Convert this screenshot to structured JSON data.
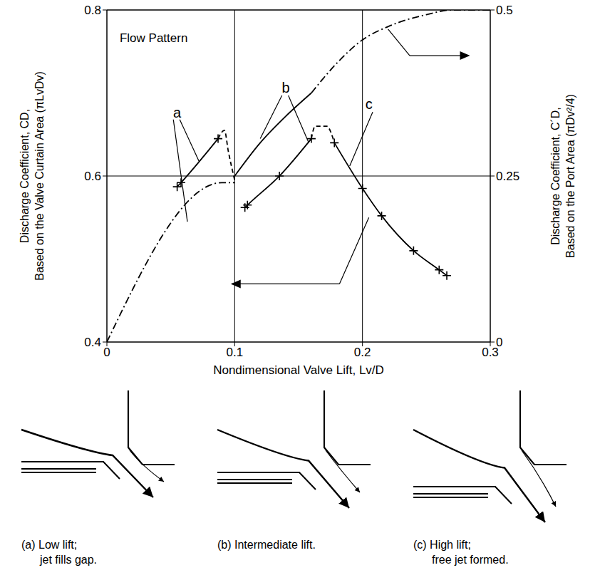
{
  "chart_data": {
    "type": "line",
    "xlabel": "Nondimensional Valve Lift, Lv/D",
    "ylabel": [
      "Discharge Coefficient, CD,",
      "Based on the Valve Curtain Area (πLvDv)"
    ],
    "y2label": [
      "Discharge Coefficient, C´D,",
      "Based on the Port Area (πDv²/4)"
    ],
    "xlim": [
      0,
      0.3
    ],
    "xticks": [
      0,
      0.1,
      0.2,
      0.3
    ],
    "ylim": [
      0.4,
      0.8
    ],
    "yticks": [
      0.4,
      0.6,
      0.8
    ],
    "y2lim": [
      0,
      0.5
    ],
    "y2ticks": [
      0,
      0.25,
      0.5
    ],
    "grid": true,
    "series": [
      {
        "color": "#000000",
        "line_style": "solid",
        "marker": "plus",
        "x": [
          0.055,
          0.058,
          0.087
        ],
        "values": [
          0.587,
          0.592,
          0.645
        ]
      },
      {
        "color": "#000000",
        "line_style": "dashed",
        "marker": "none",
        "x": [
          0.087,
          0.092,
          0.095,
          0.1
        ],
        "values": [
          0.645,
          0.655,
          0.63,
          0.595
        ]
      },
      {
        "color": "#000000",
        "line_style": "solid",
        "marker": "plus",
        "x": [
          0.108,
          0.11,
          0.135,
          0.16
        ],
        "values": [
          0.562,
          0.565,
          0.6,
          0.645
        ]
      },
      {
        "color": "#000000",
        "line_style": "dashed",
        "marker": "none",
        "x": [
          0.16,
          0.163,
          0.172,
          0.178
        ],
        "values": [
          0.645,
          0.66,
          0.66,
          0.64
        ]
      },
      {
        "color": "#000000",
        "line_style": "solid",
        "marker": "plus",
        "x": [
          0.178,
          0.2,
          0.215,
          0.24,
          0.26,
          0.266
        ],
        "values": [
          0.64,
          0.585,
          0.552,
          0.51,
          0.487,
          0.48
        ]
      },
      {
        "color": "#000000",
        "line_style": "dashdot",
        "marker": "none",
        "axis": "y2",
        "x": [
          0,
          0.09,
          0.1
        ],
        "values": [
          0,
          0.24,
          0.24
        ]
      },
      {
        "color": "#000000",
        "line_style": "solid",
        "marker": "none",
        "axis": "y2",
        "x": [
          0.1,
          0.12,
          0.14,
          0.16
        ],
        "values": [
          0.25,
          0.3,
          0.34,
          0.375
        ]
      },
      {
        "color": "#000000",
        "line_style": "dashdot",
        "marker": "none",
        "axis": "y2",
        "x": [
          0.16,
          0.18,
          0.2,
          0.22,
          0.25,
          0.27,
          0.3
        ],
        "values": [
          0.375,
          0.42,
          0.455,
          0.475,
          0.493,
          0.5,
          0.5
        ]
      }
    ],
    "annotations": [
      {
        "text": "Flow Pattern",
        "x": 0.01,
        "y": 0.765
      },
      {
        "text": "a",
        "x": 0.055,
        "y": 0.675
      },
      {
        "text": "b",
        "x": 0.14,
        "y": 0.705
      },
      {
        "text": "c",
        "x": 0.205,
        "y": 0.685
      }
    ]
  },
  "diagrams": [
    {
      "caption": [
        "(a) Low lift;",
        "jet fills gap."
      ]
    },
    {
      "caption": [
        "(b) Intermediate lift."
      ]
    },
    {
      "caption": [
        "(c) High lift;",
        "free jet formed."
      ]
    }
  ]
}
